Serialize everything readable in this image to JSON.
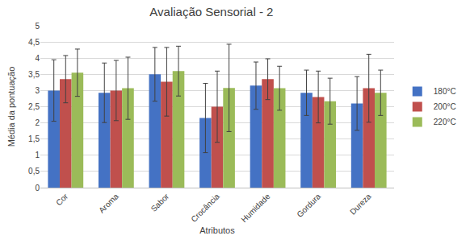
{
  "chart_data": {
    "type": "bar",
    "title": "Avaliação Sensorial - 2",
    "x_label": "Atributos",
    "y_label": "Média da pontuação",
    "categories": [
      "Cor",
      "Aroma",
      "Sabor",
      "Crocância",
      "Humidade",
      "Gordura",
      "Dureza"
    ],
    "series": [
      {
        "name": "180°C",
        "color": "#4472c4",
        "values": [
          3.0,
          2.93,
          3.5,
          2.15,
          3.15,
          2.93,
          2.6
        ],
        "error": [
          0.95,
          0.92,
          0.83,
          1.07,
          0.73,
          0.7,
          0.83
        ]
      },
      {
        "name": "200°C",
        "color": "#c0504d",
        "values": [
          3.35,
          3.0,
          3.27,
          2.5,
          3.35,
          2.8,
          3.07
        ],
        "error": [
          0.73,
          0.93,
          1.06,
          1.1,
          0.63,
          0.8,
          1.05
        ]
      },
      {
        "name": "220°C",
        "color": "#9bbb59",
        "values": [
          3.55,
          3.07,
          3.6,
          3.08,
          3.07,
          2.67,
          2.93
        ],
        "error": [
          0.73,
          0.96,
          0.77,
          1.35,
          0.68,
          0.71,
          0.7
        ]
      }
    ],
    "ylim": [
      0,
      5
    ],
    "yticks": [
      0,
      {
        "value": 0.5,
        "label": "0,5"
      },
      1,
      {
        "value": 1.5,
        "label": "1,5"
      },
      2,
      {
        "value": 2.5,
        "label": "2,5"
      },
      3,
      {
        "value": 3.5,
        "label": "3,5"
      },
      4,
      {
        "value": 4.5,
        "label": "4,5"
      },
      5
    ],
    "grid": true,
    "legend": "right"
  }
}
